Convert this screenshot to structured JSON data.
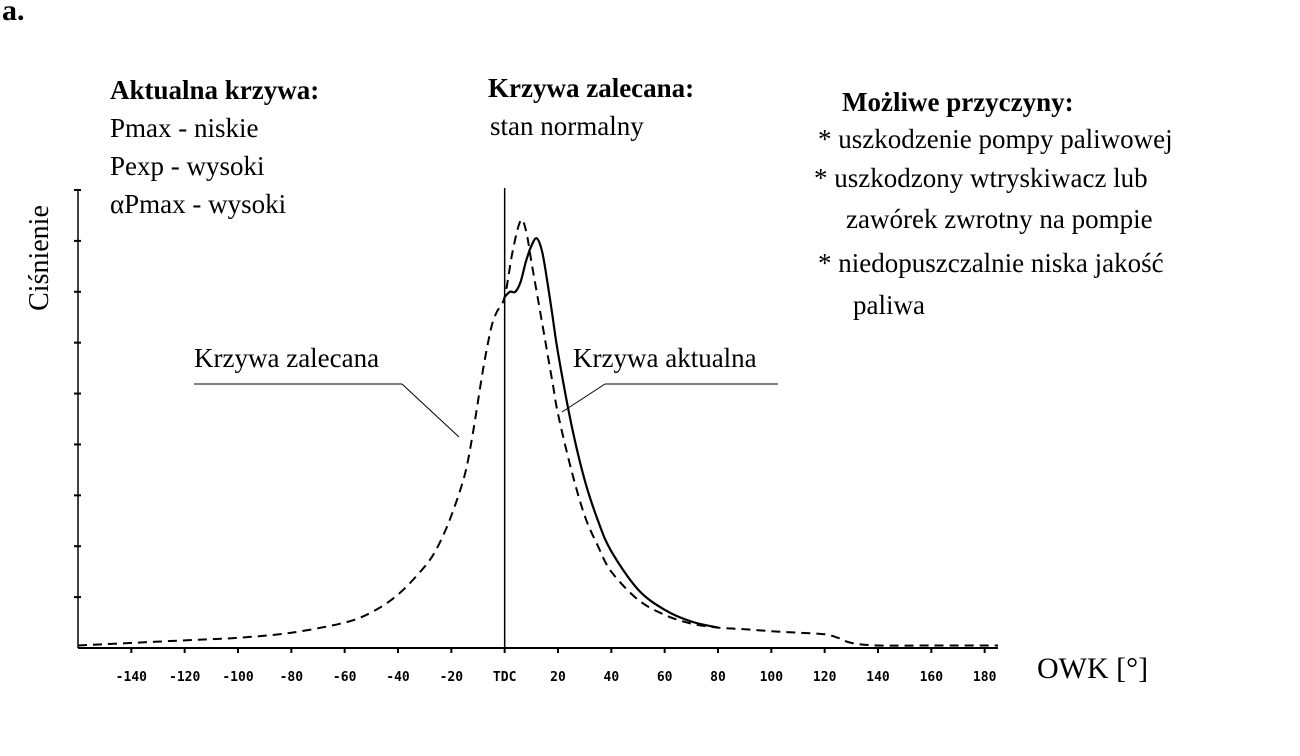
{
  "figure_label": "a.",
  "ylabel": "Ciśnienie",
  "xlabel": "OWK [°]",
  "tdc_label": "TDC",
  "panels": {
    "actual_heading": "Aktualna krzywa:",
    "actual_lines": [
      "Pmax - niskie",
      "Pexp - wysoki",
      "αPmax - wysoki"
    ],
    "recommended_heading": "Krzywa zalecana:",
    "recommended_lines": [
      "stan normalny"
    ],
    "causes_heading": "Możliwe przyczyny:",
    "causes_lines": [
      "* uszkodzenie pompy paliwowej",
      "* uszkodzony wtryskiwacz lub",
      "zawórek zwrotny na pompie",
      "* niedopuszczalnie niska jakość",
      "paliwa"
    ]
  },
  "annotations": {
    "recommended_curve": "Krzywa zalecana",
    "actual_curve": "Krzywa aktualna"
  },
  "chart_data": {
    "type": "line",
    "title": "",
    "xlabel": "OWK [°]",
    "ylabel": "Ciśnienie",
    "xlim": [
      -160,
      185
    ],
    "ylim": [
      0,
      9
    ],
    "x_ticks": [
      -140,
      -120,
      -100,
      -80,
      -60,
      -40,
      -20,
      0,
      20,
      40,
      60,
      80,
      100,
      120,
      140,
      160,
      180
    ],
    "x_tick_labels": [
      "-140",
      "-120",
      "-100",
      "-80",
      "-60",
      "-40",
      "-20",
      "TDC",
      "20",
      "40",
      "60",
      "80",
      "100",
      "120",
      "140",
      "160",
      "180"
    ],
    "y_ticks": [
      1,
      2,
      3,
      4,
      5,
      6,
      7,
      8,
      9
    ],
    "y_tick_labels": [],
    "grid": false,
    "legend": "none",
    "series": [
      {
        "name": "Krzywa zalecana",
        "style": "dashed",
        "x": [
          -160,
          -140,
          -120,
          -100,
          -80,
          -60,
          -50,
          -40,
          -30,
          -25,
          -20,
          -15,
          -12,
          -8,
          -5,
          -3,
          0,
          3,
          6,
          8,
          10,
          12,
          15,
          18,
          20,
          25,
          30,
          35,
          40,
          50,
          60,
          70,
          80,
          90,
          100,
          110,
          120,
          125,
          130,
          140,
          160,
          185
        ],
        "y": [
          0.05,
          0.1,
          0.15,
          0.2,
          0.3,
          0.5,
          0.7,
          1.05,
          1.6,
          2.0,
          2.6,
          3.4,
          4.2,
          5.5,
          6.3,
          6.6,
          6.9,
          7.8,
          8.4,
          8.2,
          7.6,
          7.0,
          6.1,
          5.2,
          4.6,
          3.5,
          2.6,
          2.0,
          1.5,
          0.95,
          0.65,
          0.48,
          0.4,
          0.37,
          0.33,
          0.3,
          0.27,
          0.2,
          0.1,
          0.05,
          0.05,
          0.05
        ]
      },
      {
        "name": "Krzywa aktualna",
        "style": "solid",
        "x": [
          0,
          2,
          4,
          6,
          8,
          10,
          12,
          14,
          16,
          18,
          20,
          25,
          30,
          35,
          40,
          50,
          60,
          70,
          80
        ],
        "y": [
          6.9,
          7.0,
          7.0,
          7.2,
          7.6,
          7.9,
          8.05,
          7.8,
          7.2,
          6.5,
          5.8,
          4.4,
          3.3,
          2.5,
          1.9,
          1.15,
          0.75,
          0.52,
          0.4
        ]
      }
    ]
  }
}
